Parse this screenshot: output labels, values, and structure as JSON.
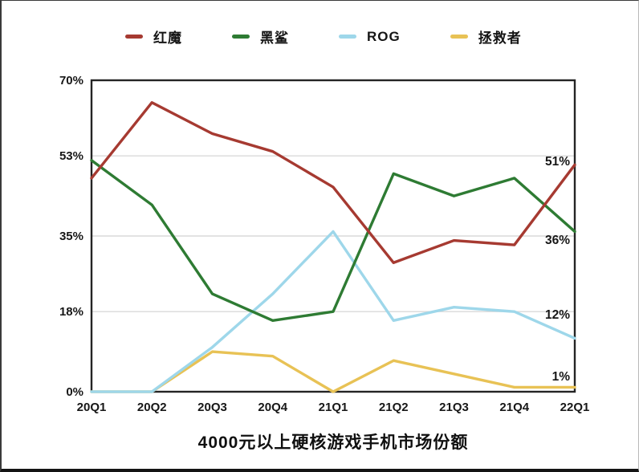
{
  "chart_data": {
    "type": "line",
    "title": "4000元以上硬核游戏手机市场份额",
    "categories": [
      "20Q1",
      "20Q2",
      "20Q3",
      "20Q4",
      "21Q1",
      "21Q2",
      "21Q3",
      "21Q4",
      "22Q1"
    ],
    "series": [
      {
        "name": "红魔",
        "key": "red-magic",
        "color": "#a63a31",
        "values": [
          48,
          65,
          58,
          54,
          46,
          29,
          34,
          33,
          51
        ]
      },
      {
        "name": "黑鲨",
        "key": "black-shark",
        "color": "#2e7b33",
        "values": [
          52,
          42,
          22,
          16,
          18,
          49,
          44,
          48,
          36
        ]
      },
      {
        "name": "ROG",
        "key": "rog",
        "color": "#9ed7ea",
        "values": [
          0,
          0,
          10,
          22,
          36,
          16,
          19,
          18,
          12
        ]
      },
      {
        "name": "拯救者",
        "key": "legion",
        "color": "#e8c255",
        "values": [
          0,
          0,
          9,
          8,
          0,
          7,
          4,
          1,
          1
        ]
      }
    ],
    "y_ticks": [
      "0%",
      "18%",
      "35%",
      "53%",
      "70%"
    ],
    "y_tick_values": [
      0,
      18,
      35,
      53,
      70
    ],
    "ylim": [
      0,
      70
    ],
    "xlabel": "",
    "ylabel": "",
    "grid": "horizontal",
    "legend_position": "top",
    "end_labels": [
      {
        "series": "红魔",
        "text": "51%"
      },
      {
        "series": "黑鲨",
        "text": "36%"
      },
      {
        "series": "ROG",
        "text": "12%"
      },
      {
        "series": "拯救者",
        "text": "1%"
      }
    ],
    "colors": {
      "grid": "#dadada",
      "plot_border": "#242424",
      "text": "#171717",
      "background": "#ffffff"
    }
  }
}
